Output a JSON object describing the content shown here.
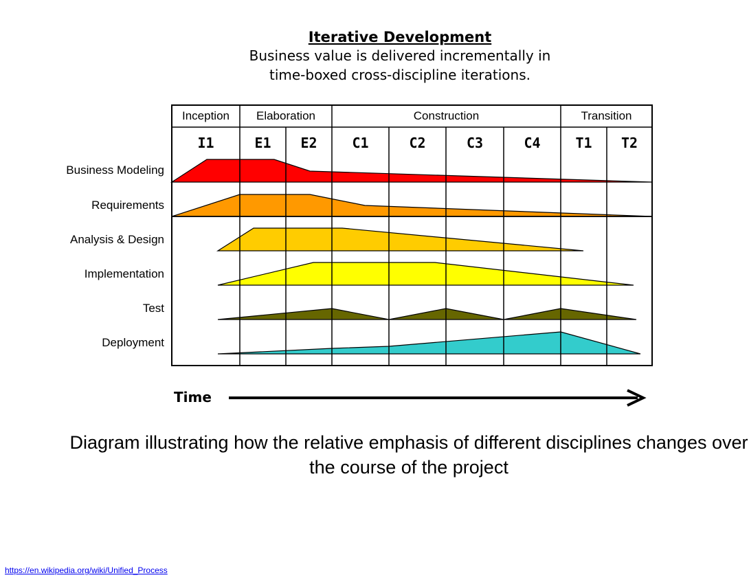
{
  "diagram": {
    "title": "Iterative Development",
    "subtitle_lines": [
      "Business value is delivered incrementally in",
      "time-boxed cross-discipline iterations."
    ],
    "phases": [
      "Inception",
      "Elaboration",
      "Construction",
      "Transition"
    ],
    "iterations": [
      "I1",
      "E1",
      "E2",
      "C1",
      "C2",
      "C3",
      "C4",
      "T1",
      "T2"
    ],
    "disciplines": [
      {
        "name": "Business Modeling",
        "color": "#ff0000"
      },
      {
        "name": "Requirements",
        "color": "#ff9900"
      },
      {
        "name": "Analysis & Design",
        "color": "#ffcc00"
      },
      {
        "name": "Implementation",
        "color": "#ffff00"
      },
      {
        "name": "Test",
        "color": "#666600"
      },
      {
        "name": "Deployment",
        "color": "#33cccc"
      }
    ],
    "time_label": "Time"
  },
  "caption": "Diagram illustrating how the relative emphasis of different disciplines changes over the course of the project",
  "source_link": "https://en.wikipedia.org/wiki/Unified_Process"
}
